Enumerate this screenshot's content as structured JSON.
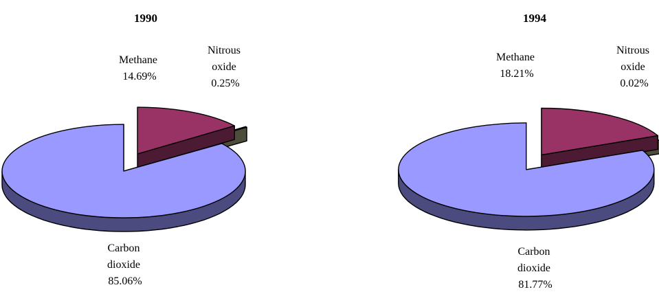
{
  "chart_data": [
    {
      "type": "pie",
      "title": "1990",
      "slices": [
        {
          "label_lines": [
            "Carbon",
            "dioxide"
          ],
          "value": 85.06,
          "value_text": "85.06%",
          "color": "#9999ff",
          "side_color": "#4b4b80"
        },
        {
          "label_lines": [
            "Methane"
          ],
          "value": 14.69,
          "value_text": "14.69%",
          "color": "#993366",
          "side_color": "#4d1a33"
        },
        {
          "label_lines": [
            "Nitrous",
            "oxide"
          ],
          "value": 0.25,
          "value_text": "0.25%",
          "color": "#999977",
          "side_color": "#4d4d3c"
        }
      ]
    },
    {
      "type": "pie",
      "title": "1994",
      "slices": [
        {
          "label_lines": [
            "Carbon",
            "dioxide"
          ],
          "value": 81.77,
          "value_text": "81.77%",
          "color": "#9999ff",
          "side_color": "#4b4b80"
        },
        {
          "label_lines": [
            "Methane"
          ],
          "value": 18.21,
          "value_text": "18.21%",
          "color": "#993366",
          "side_color": "#4d1a33"
        },
        {
          "label_lines": [
            "Nitrous",
            "oxide"
          ],
          "value": 0.02,
          "value_text": "0.02%",
          "color": "#999977",
          "side_color": "#4d4d3c"
        }
      ]
    }
  ]
}
